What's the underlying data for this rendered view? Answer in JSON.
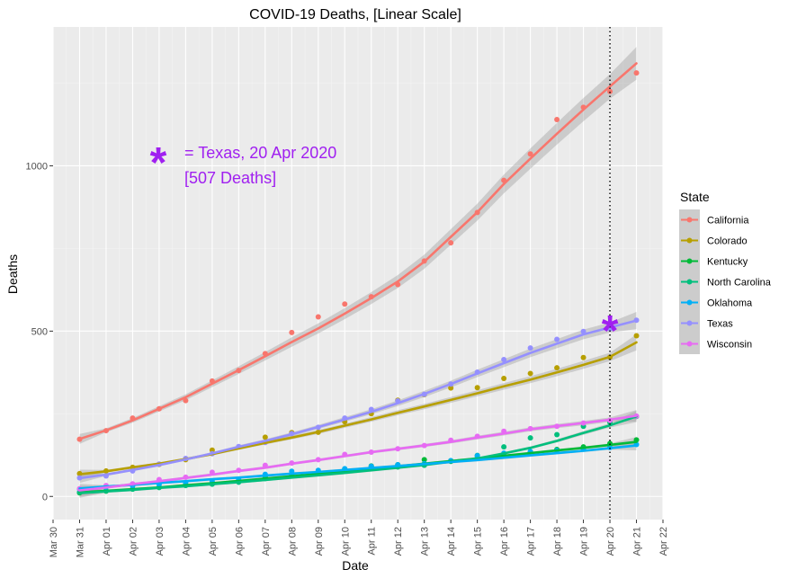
{
  "chart_data": {
    "type": "line",
    "title": "COVID-19 Deaths, [Linear Scale]",
    "xlabel": "Date",
    "ylabel": "Deaths",
    "x_tick_labels": [
      "Mar 30",
      "Mar 31",
      "Apr 01",
      "Apr 02",
      "Apr 03",
      "Apr 04",
      "Apr 05",
      "Apr 06",
      "Apr 07",
      "Apr 08",
      "Apr 09",
      "Apr 10",
      "Apr 11",
      "Apr 12",
      "Apr 13",
      "Apr 14",
      "Apr 15",
      "Apr 16",
      "Apr 17",
      "Apr 18",
      "Apr 19",
      "Apr 20",
      "Apr 21",
      "Apr 22"
    ],
    "x_dates": [
      "Mar 31",
      "Apr 01",
      "Apr 02",
      "Apr 03",
      "Apr 04",
      "Apr 05",
      "Apr 06",
      "Apr 07",
      "Apr 08",
      "Apr 09",
      "Apr 10",
      "Apr 11",
      "Apr 12",
      "Apr 13",
      "Apr 14",
      "Apr 15",
      "Apr 16",
      "Apr 17",
      "Apr 18",
      "Apr 19",
      "Apr 20",
      "Apr 21"
    ],
    "xlim": [
      "Mar 30",
      "Apr 22"
    ],
    "ylim": [
      -70,
      1420
    ],
    "y_ticks": [
      0,
      500,
      1000
    ],
    "grid": true,
    "legend": {
      "title": "State",
      "position": "right"
    },
    "series": [
      {
        "name": "California",
        "color": "#F8766D",
        "values": [
          173,
          199,
          237,
          265,
          290,
          349,
          381,
          432,
          496,
          543,
          582,
          604,
          641,
          712,
          767,
          859,
          956,
          1036,
          1140,
          1177,
          1225,
          1281
        ],
        "smooth": [
          174,
          200,
          230,
          265,
          300,
          341,
          382,
          424,
          467,
          508,
          553,
          600,
          650,
          710,
          785,
          860,
          945,
          1022,
          1097,
          1170,
          1240,
          1310
        ]
      },
      {
        "name": "Colorado",
        "color": "#B79F00",
        "values": [
          69,
          77,
          88,
          97,
          111,
          140,
          150,
          179,
          193,
          194,
          226,
          250,
          291,
          308,
          328,
          329,
          357,
          372,
          389,
          420,
          421,
          486
        ],
        "smooth": [
          67,
          76,
          88,
          99,
          113,
          128,
          145,
          162,
          178,
          195,
          214,
          233,
          253,
          272,
          292,
          312,
          333,
          353,
          375,
          398,
          422,
          466
        ]
      },
      {
        "name": "Kentucky",
        "color": "#00BA38",
        "values": [
          11,
          16,
          22,
          28,
          36,
          40,
          45,
          59,
          65,
          73,
          83,
          92,
          96,
          111,
          106,
          117,
          124,
          135,
          142,
          150,
          160,
          171
        ],
        "smooth": [
          13,
          17,
          22,
          27,
          34,
          40,
          47,
          54,
          61,
          68,
          76,
          83,
          91,
          99,
          107,
          115,
          123,
          131,
          139,
          147,
          156,
          165
        ]
      },
      {
        "name": "North Carolina",
        "color": "#00BF7D",
        "values": [
          13,
          17,
          22,
          27,
          33,
          37,
          43,
          54,
          67,
          74,
          81,
          89,
          89,
          94,
          108,
          124,
          150,
          177,
          187,
          212,
          224,
          242
        ],
        "smooth": [
          10,
          15,
          20,
          26,
          31,
          37,
          43,
          50,
          57,
          64,
          71,
          79,
          87,
          95,
          105,
          115,
          130,
          147,
          168,
          192,
          215,
          242
        ]
      },
      {
        "name": "Oklahoma",
        "color": "#00B0F6",
        "values": [
          22,
          28,
          32,
          36,
          42,
          46,
          51,
          67,
          76,
          79,
          84,
          91,
          96,
          99,
          108,
          123,
          131,
          136,
          139,
          143,
          148,
          157
        ],
        "smooth": [
          24,
          30,
          35,
          41,
          46,
          52,
          57,
          63,
          69,
          74,
          80,
          86,
          92,
          98,
          104,
          110,
          117,
          124,
          131,
          138,
          146,
          154
        ]
      },
      {
        "name": "Texas",
        "color": "#9590FF",
        "values": [
          56,
          62,
          77,
          98,
          115,
          129,
          151,
          163,
          190,
          209,
          237,
          263,
          289,
          309,
          340,
          376,
          414,
          449,
          475,
          499,
          507,
          533
        ],
        "smooth": [
          55,
          66,
          80,
          95,
          112,
          130,
          150,
          168,
          188,
          210,
          233,
          256,
          282,
          310,
          340,
          372,
          403,
          434,
          462,
          490,
          511,
          532
        ]
      },
      {
        "name": "Wisconsin",
        "color": "#E76BF3",
        "values": [
          23,
          33,
          38,
          51,
          58,
          73,
          79,
          94,
          101,
          111,
          127,
          134,
          144,
          154,
          170,
          182,
          197,
          205,
          212,
          222,
          230,
          243
        ],
        "smooth": [
          18,
          27,
          37,
          46,
          56,
          66,
          77,
          87,
          99,
          110,
          122,
          134,
          144,
          154,
          165,
          178,
          190,
          203,
          213,
          222,
          232,
          244
        ]
      }
    ],
    "vline": {
      "x": "Apr 20",
      "style": "dotted"
    },
    "marker": {
      "x": "Apr 20",
      "y": 507,
      "symbol": "*",
      "color": "#A020F0"
    },
    "annotation": {
      "line1": "= Texas, 20 Apr 2020",
      "line2": "[507 Deaths]",
      "symbol": "*",
      "color": "#A020F0"
    }
  }
}
